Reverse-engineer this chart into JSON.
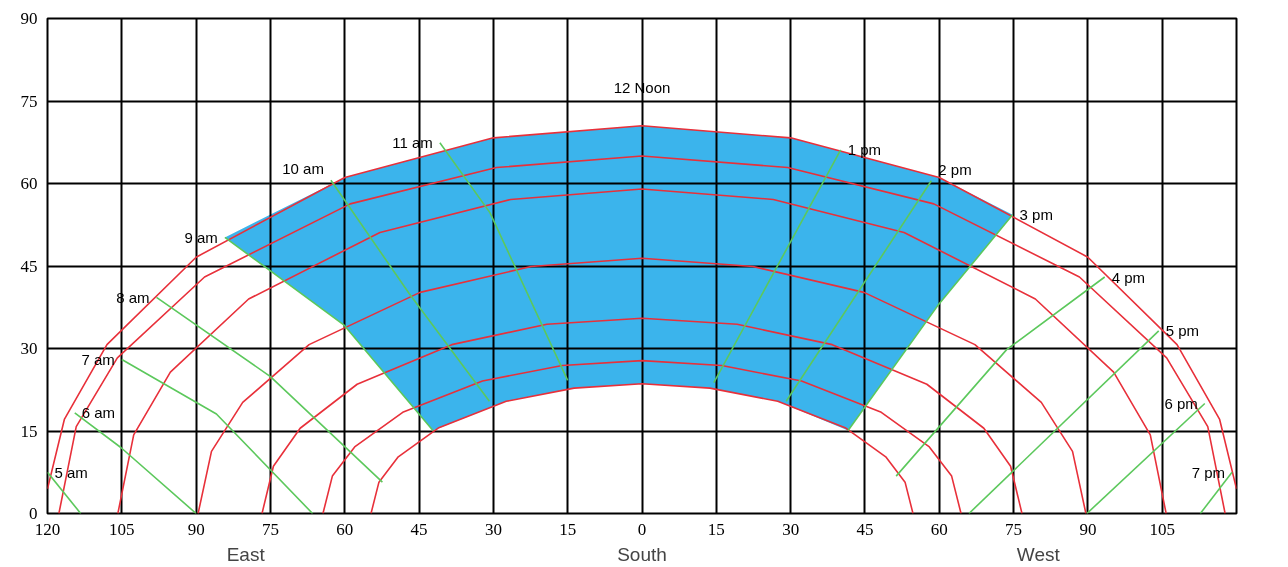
{
  "chart_data": {
    "type": "line",
    "marker": "none",
    "line_style": "solid",
    "grid": true,
    "xlim": [
      -120,
      120
    ],
    "ylim": [
      0,
      90
    ],
    "xticks": [
      {
        "value": -120,
        "label": "120"
      },
      {
        "value": -105,
        "label": "105"
      },
      {
        "value": -90,
        "label": "90"
      },
      {
        "value": -75,
        "label": "75"
      },
      {
        "value": -60,
        "label": "60"
      },
      {
        "value": -45,
        "label": "45"
      },
      {
        "value": -30,
        "label": "30"
      },
      {
        "value": -15,
        "label": "15"
      },
      0,
      15,
      30,
      45,
      60,
      75,
      90,
      105,
      {
        "value": 120,
        "label": null
      }
    ],
    "yticks": [
      0,
      15,
      30,
      45,
      60,
      75,
      90
    ],
    "series": [
      {
        "type": "area",
        "color": "#3bb4ec",
        "x": [
          -84.2,
          -60,
          -30,
          0,
          30,
          60,
          74.8,
          59.7,
          41.6,
          27.4,
          13.7,
          0,
          -13.7,
          -27.4,
          -42.2,
          -60.2
        ],
        "values": [
          50.2,
          61.1,
          68.3,
          70.5,
          68.3,
          61.1,
          54.3,
          37.8,
          15.1,
          20.4,
          22.8,
          23.6,
          22.8,
          20.4,
          15.1,
          34.3
        ]
      },
      {
        "color": "#e8303a",
        "x": [
          -54.7,
          -53.1,
          -49.2,
          -41,
          -27.4,
          -13.7,
          0,
          13.7,
          27.4,
          41,
          49.2,
          53.1,
          54.7
        ],
        "values": [
          0,
          5.7,
          10.3,
          15.6,
          20.4,
          22.8,
          23.6,
          22.8,
          20.4,
          15.6,
          10.3,
          5.7,
          0
        ]
      },
      {
        "color": "#e8303a",
        "x": [
          -64.4,
          -62.5,
          -58,
          -48.3,
          -32.2,
          -16.1,
          0,
          16.1,
          32.2,
          48.3,
          58,
          62.5,
          64.4
        ],
        "values": [
          0,
          6.8,
          12.1,
          18.4,
          24.1,
          26.9,
          27.8,
          26.9,
          24.1,
          18.4,
          12.1,
          6.8,
          0
        ]
      },
      {
        "color": "#e8303a",
        "x": [
          -76.7,
          -74.4,
          -69,
          -57.5,
          -38.4,
          -19.2,
          0,
          19.2,
          38.4,
          57.5,
          69,
          74.4,
          76.7
        ],
        "values": [
          0,
          8.6,
          15.5,
          23.5,
          30.7,
          34.4,
          35.5,
          34.4,
          30.7,
          23.5,
          15.5,
          8.6,
          0
        ]
      },
      {
        "color": "#e8303a",
        "x": [
          -89.6,
          -86.9,
          -80.6,
          -67.2,
          -44.8,
          -22.4,
          0,
          22.4,
          44.8,
          67.2,
          80.6,
          86.9,
          89.6
        ],
        "values": [
          0,
          11.3,
          20.2,
          30.7,
          40.2,
          44.9,
          46.4,
          44.9,
          40.2,
          30.7,
          20.2,
          11.3,
          0
        ]
      },
      {
        "color": "#e8303a",
        "x": [
          -105.8,
          -102.6,
          -95.2,
          -79.4,
          -52.9,
          -26.5,
          0,
          26.5,
          52.9,
          79.4,
          95.2,
          102.6,
          105.8
        ],
        "values": [
          0,
          14.3,
          25.7,
          39,
          51.1,
          57.1,
          59,
          57.1,
          51.1,
          39,
          25.7,
          14.3,
          0
        ]
      },
      {
        "color": "#e8303a",
        "x": [
          -117.7,
          -114.2,
          -105.9,
          -88.3,
          -58.9,
          -29.4,
          0,
          29.4,
          58.9,
          88.3,
          105.9,
          114.2,
          117.7
        ],
        "values": [
          0,
          15.8,
          28.3,
          43,
          56.3,
          62.9,
          65,
          62.9,
          56.3,
          43,
          28.3,
          15.8,
          0
        ]
      },
      {
        "color": "#e8303a",
        "x": [
          -120,
          -116.6,
          -108,
          -90,
          -60,
          -30,
          0,
          30,
          60,
          90,
          108,
          116.6,
          120
        ],
        "values": [
          4.5,
          17.1,
          30.7,
          46.6,
          61.1,
          68.3,
          70.5,
          68.3,
          61.1,
          46.6,
          30.7,
          17.1,
          4.5
        ]
      },
      {
        "color": "#5cc85c",
        "x": [
          -120,
          -113.3
        ],
        "values": [
          7.5,
          0
        ]
      },
      {
        "color": "#5cc85c",
        "x": [
          -114.5,
          -105.2,
          -90
        ],
        "values": [
          18.3,
          12,
          0
        ]
      },
      {
        "color": "#5cc85c",
        "x": [
          -105,
          -85.9,
          -66.5
        ],
        "values": [
          28,
          18.1,
          0
        ]
      },
      {
        "color": "#5cc85c",
        "x": [
          -98,
          -75,
          -52.4
        ],
        "values": [
          39.3,
          24.9,
          5.7
        ]
      },
      {
        "color": "#5cc85c",
        "x": [
          -84.2,
          -60.2,
          -42.2
        ],
        "values": [
          50.2,
          34.3,
          15.1
        ]
      },
      {
        "color": "#5cc85c",
        "x": [
          -62.8,
          -47,
          -30.8
        ],
        "values": [
          60.6,
          40,
          20.4
        ]
      },
      {
        "color": "#5cc85c",
        "x": [
          -40.8,
          -30.7,
          -15
        ],
        "values": [
          67.4,
          54.7,
          24.2
        ]
      },
      {
        "color": "#5cc85c",
        "x": [
          40.1,
          14.5
        ],
        "values": [
          66.1,
          23.8
        ]
      },
      {
        "color": "#5cc85c",
        "x": [
          58.4,
          29.1
        ],
        "values": [
          60.5,
          20.4
        ]
      },
      {
        "color": "#5cc85c",
        "x": [
          74.8,
          59.7,
          41.6
        ],
        "values": [
          54.3,
          37.8,
          15.1
        ]
      },
      {
        "color": "#5cc85c",
        "x": [
          93.4,
          73.6,
          51.3
        ],
        "values": [
          43,
          29.8,
          6.8
        ]
      },
      {
        "color": "#5cc85c",
        "x": [
          104.3,
          66
        ],
        "values": [
          33.2,
          0
        ]
      },
      {
        "color": "#5cc85c",
        "x": [
          113.6,
          89.8
        ],
        "values": [
          20,
          0
        ]
      },
      {
        "color": "#5cc85c",
        "x": [
          119.1,
          112.7
        ],
        "values": [
          7.5,
          0
        ]
      }
    ],
    "annotations": [
      {
        "text": "5 am",
        "x": -120,
        "y": 7.5
      },
      {
        "text": "6 am",
        "x": -114.5,
        "y": 18.3
      },
      {
        "text": "7 am",
        "x": -105,
        "y": 28
      },
      {
        "text": "8 am",
        "x": -98,
        "y": 39.3
      },
      {
        "text": "9 am",
        "x": -84.2,
        "y": 50.2
      },
      {
        "text": "10 am",
        "x": -62.8,
        "y": 60.6
      },
      {
        "text": "11 am",
        "x": -40.8,
        "y": 67.4
      },
      {
        "text": "12 Noon",
        "x": 0,
        "y": 70.5
      },
      {
        "text": "1 pm",
        "x": 40.1,
        "y": 66.1
      },
      {
        "text": "2 pm",
        "x": 58.4,
        "y": 60.5
      },
      {
        "text": "3 pm",
        "x": 74.8,
        "y": 54.3
      },
      {
        "text": "4 pm",
        "x": 93.4,
        "y": 43
      },
      {
        "text": "5 pm",
        "x": 104.3,
        "y": 33.2
      },
      {
        "text": "6 pm",
        "x": 113.6,
        "y": 20
      },
      {
        "text": "7 pm",
        "x": 119.1,
        "y": 7.5
      },
      "East",
      "South",
      "West"
    ]
  }
}
